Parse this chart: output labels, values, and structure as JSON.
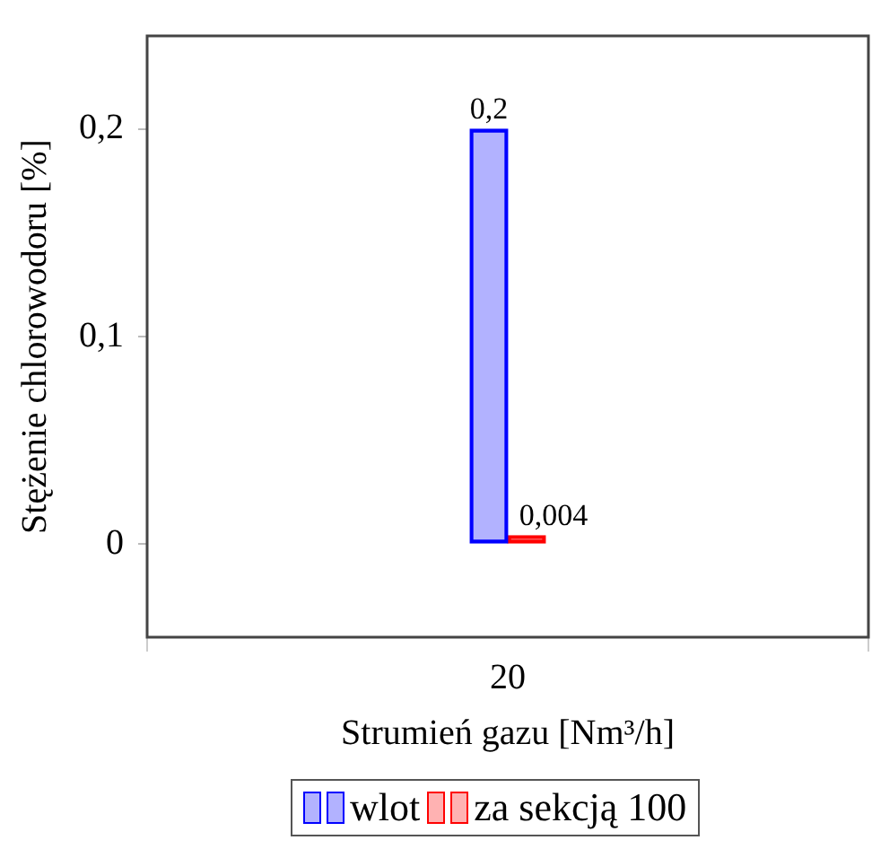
{
  "chart_data": {
    "type": "bar",
    "xlabel": "Strumień gazu [Nm³/h]",
    "ylabel": "Stężenie chlorowodoru [%]",
    "categories": [
      "20"
    ],
    "series": [
      {
        "name": "wlot",
        "color": "#0000ff",
        "values": [
          0.2
        ],
        "value_labels": [
          "0,2"
        ]
      },
      {
        "name": "za sekcją 100",
        "color": "#ff0000",
        "values": [
          0.004
        ],
        "value_labels": [
          "0,004"
        ]
      }
    ],
    "ylim": [
      -0.045,
      0.245
    ],
    "yticks": [
      {
        "value": 0,
        "label": "0"
      },
      {
        "value": 0.1,
        "label": "0,1"
      },
      {
        "value": 0.2,
        "label": "0,2"
      }
    ],
    "grid": false,
    "legend": "bottom"
  }
}
